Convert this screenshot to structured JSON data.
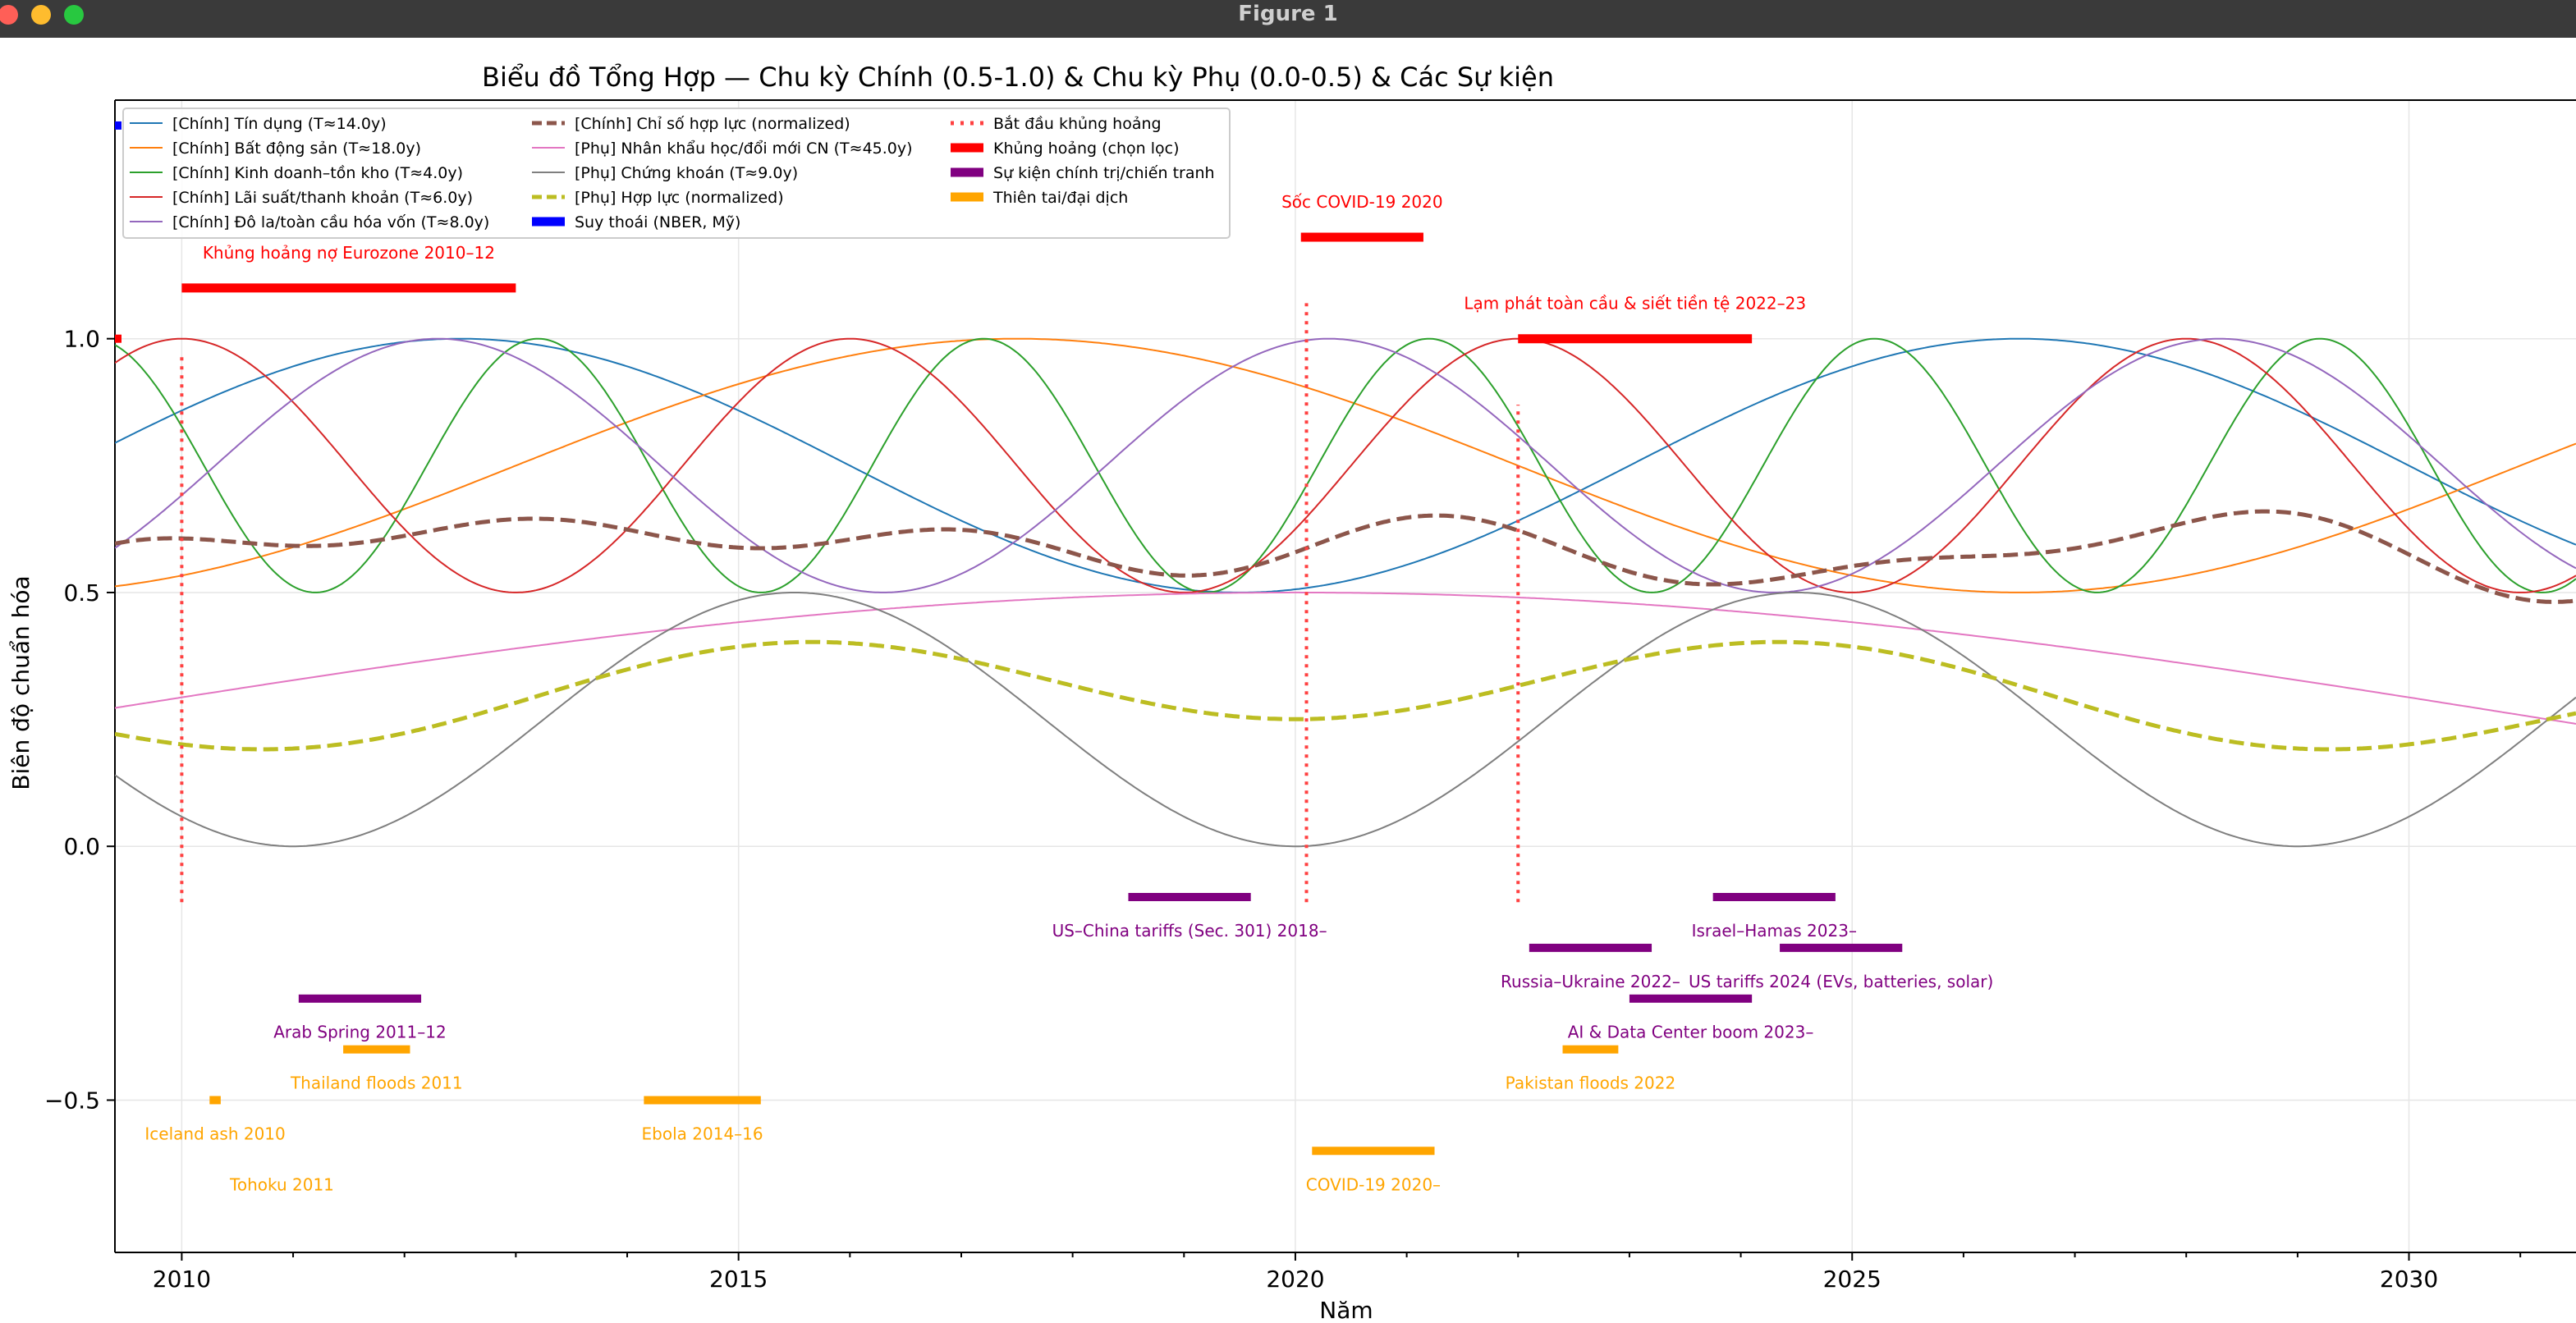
{
  "window": {
    "title": "Figure 1",
    "controls": [
      "close-button",
      "minimize-button",
      "zoom-button"
    ]
  },
  "chart_data": {
    "type": "line",
    "title": "Biểu đồ Tổng Hợp — Chu kỳ Chính (0.5-1.0) & Chu kỳ Phụ (0.0-0.5) & Các Sự kiện",
    "xlabel": "Năm",
    "ylabel": "Biên độ chuẩn hóa",
    "xlim": [
      2009.4,
      2031.5
    ],
    "ylim": [
      -0.8,
      1.47
    ],
    "xticks": [
      2010,
      2015,
      2020,
      2025,
      2030
    ],
    "yticks": [
      -0.5,
      0.0,
      0.5,
      1.0
    ],
    "ytick_labels": [
      "−0.5",
      "0.0",
      "0.5",
      "1.0"
    ],
    "grid": true,
    "legend_position": "top-left",
    "series": [
      {
        "name": "[Chính] Tín dụng (T≈14.0y)",
        "color": "#1f77b4",
        "dash": "solid",
        "width": 2,
        "kind": "cos",
        "center": 0.75,
        "amp": 0.25,
        "period": 14.0,
        "peak": 2012.5
      },
      {
        "name": "[Chính] Bất động sản (T≈18.0y)",
        "color": "#ff7f0e",
        "dash": "solid",
        "width": 2,
        "kind": "cos",
        "center": 0.75,
        "amp": 0.25,
        "period": 18.0,
        "peak": 2017.5
      },
      {
        "name": "[Chính] Kinh doanh–tồn kho (T≈4.0y)",
        "color": "#2ca02c",
        "dash": "solid",
        "width": 2,
        "kind": "cos",
        "center": 0.75,
        "amp": 0.25,
        "period": 4.0,
        "peak": 2013.2
      },
      {
        "name": "[Chính] Lãi suất/thanh khoản (T≈6.0y)",
        "color": "#d62728",
        "dash": "solid",
        "width": 2,
        "kind": "cos",
        "center": 0.75,
        "amp": 0.25,
        "period": 6.0,
        "peak": 2010.0
      },
      {
        "name": "[Chính] Đô la/toàn cầu hóa vốn (T≈8.0y)",
        "color": "#9467bd",
        "dash": "solid",
        "width": 2,
        "kind": "cos",
        "center": 0.75,
        "amp": 0.25,
        "period": 8.0,
        "peak": 2012.3
      },
      {
        "name": "[Chính] Chỉ số hợp lực (normalized)",
        "color": "#8c564b",
        "dash": "dashed",
        "width": 5,
        "kind": "mean",
        "of": [
          0,
          1,
          2,
          3,
          4
        ],
        "scale": 0.67,
        "offset": 0.25
      },
      {
        "name": "[Phụ] Nhân khẩu học/đổi mới CN (T≈45.0y)",
        "color": "#e377c2",
        "dash": "solid",
        "width": 2,
        "kind": "cos",
        "center": 0.25,
        "amp": 0.25,
        "period": 45.0,
        "peak": 2020.0
      },
      {
        "name": "[Phụ] Chứng khoán (T≈9.0y)",
        "color": "#7f7f7f",
        "dash": "solid",
        "width": 2,
        "kind": "cos",
        "center": 0.25,
        "amp": 0.25,
        "period": 9.0,
        "peak": 2015.5
      },
      {
        "name": "[Phụ] Hợp lực (normalized)",
        "color": "#bcbd22",
        "dash": "dashed",
        "width": 5,
        "kind": "mean",
        "of": [
          6,
          7
        ],
        "scale": 0.67,
        "offset": 0.0
      }
    ],
    "legend_extra": [
      {
        "name": "Suy thoái (NBER, Mỹ)",
        "color": "#0000ff",
        "style": "thick"
      },
      {
        "name": "Bắt đầu khủng hoảng",
        "color": "#ff4040",
        "style": "dotted"
      },
      {
        "name": "Khủng hoảng (chọn lọc)",
        "color": "#ff0000",
        "style": "thick"
      },
      {
        "name": "Sự kiện chính trị/chiến tranh",
        "color": "#800080",
        "style": "thick"
      },
      {
        "name": "Thiên tai/đại dịch",
        "color": "#ffa500",
        "style": "thick"
      }
    ],
    "recession_markers": [
      {
        "x": 2009.4,
        "y": 1.42
      }
    ],
    "crisis_markers": [
      {
        "x": 2009.4,
        "y": 1.0
      }
    ],
    "crisis_start_lines": [
      {
        "x": 2010.0,
        "y_from": -0.11,
        "y_to": 0.97
      },
      {
        "x": 2020.1,
        "y_from": -0.11,
        "y_to": 1.07
      },
      {
        "x": 2022.0,
        "y_from": -0.11,
        "y_to": 0.87
      }
    ],
    "crises": [
      {
        "label": "Khủng hoảng nợ Eurozone 2010–12",
        "x_start": 2010.0,
        "x_end": 2013.0,
        "y": 1.1
      },
      {
        "label": "Sốc COVID-19 2020",
        "x_start": 2020.05,
        "x_end": 2021.15,
        "y": 1.2
      },
      {
        "label": "Lạm phát toàn cầu & siết tiền tệ 2022–23",
        "x_start": 2022.0,
        "x_end": 2024.1,
        "y": 1.0
      }
    ],
    "political_events": [
      {
        "label": "Arab Spring 2011–12",
        "x_start": 2011.05,
        "x_end": 2012.15,
        "y": -0.3
      },
      {
        "label": "US–China tariffs (Sec. 301) 2018–",
        "x_start": 2018.5,
        "x_end": 2019.6,
        "y": -0.1
      },
      {
        "label": "Russia–Ukraine 2022–",
        "x_start": 2022.1,
        "x_end": 2023.2,
        "y": -0.2
      },
      {
        "label": "AI & Data Center boom 2023–",
        "x_start": 2023.0,
        "x_end": 2024.1,
        "y": -0.3
      },
      {
        "label": "Israel–Hamas 2023–",
        "x_start": 2023.75,
        "x_end": 2024.85,
        "y": -0.1
      },
      {
        "label": "US tariffs 2024 (EVs, batteries, solar)",
        "x_start": 2024.35,
        "x_end": 2025.45,
        "y": -0.2
      }
    ],
    "disasters": [
      {
        "label": "Iceland ash 2010",
        "x_start": 2010.25,
        "x_end": 2010.35,
        "y": -0.5
      },
      {
        "label": "Tohoku 2011",
        "x_start": 2010.9,
        "x_end": 2010.9,
        "y": -0.6
      },
      {
        "label": "Thailand floods 2011",
        "x_start": 2011.45,
        "x_end": 2012.05,
        "y": -0.4
      },
      {
        "label": "Ebola 2014–16",
        "x_start": 2014.15,
        "x_end": 2015.2,
        "y": -0.5
      },
      {
        "label": "COVID-19 2020–",
        "x_start": 2020.15,
        "x_end": 2021.25,
        "y": -0.6
      },
      {
        "label": "Pakistan floods 2022",
        "x_start": 2022.4,
        "x_end": 2022.9,
        "y": -0.4
      }
    ]
  }
}
